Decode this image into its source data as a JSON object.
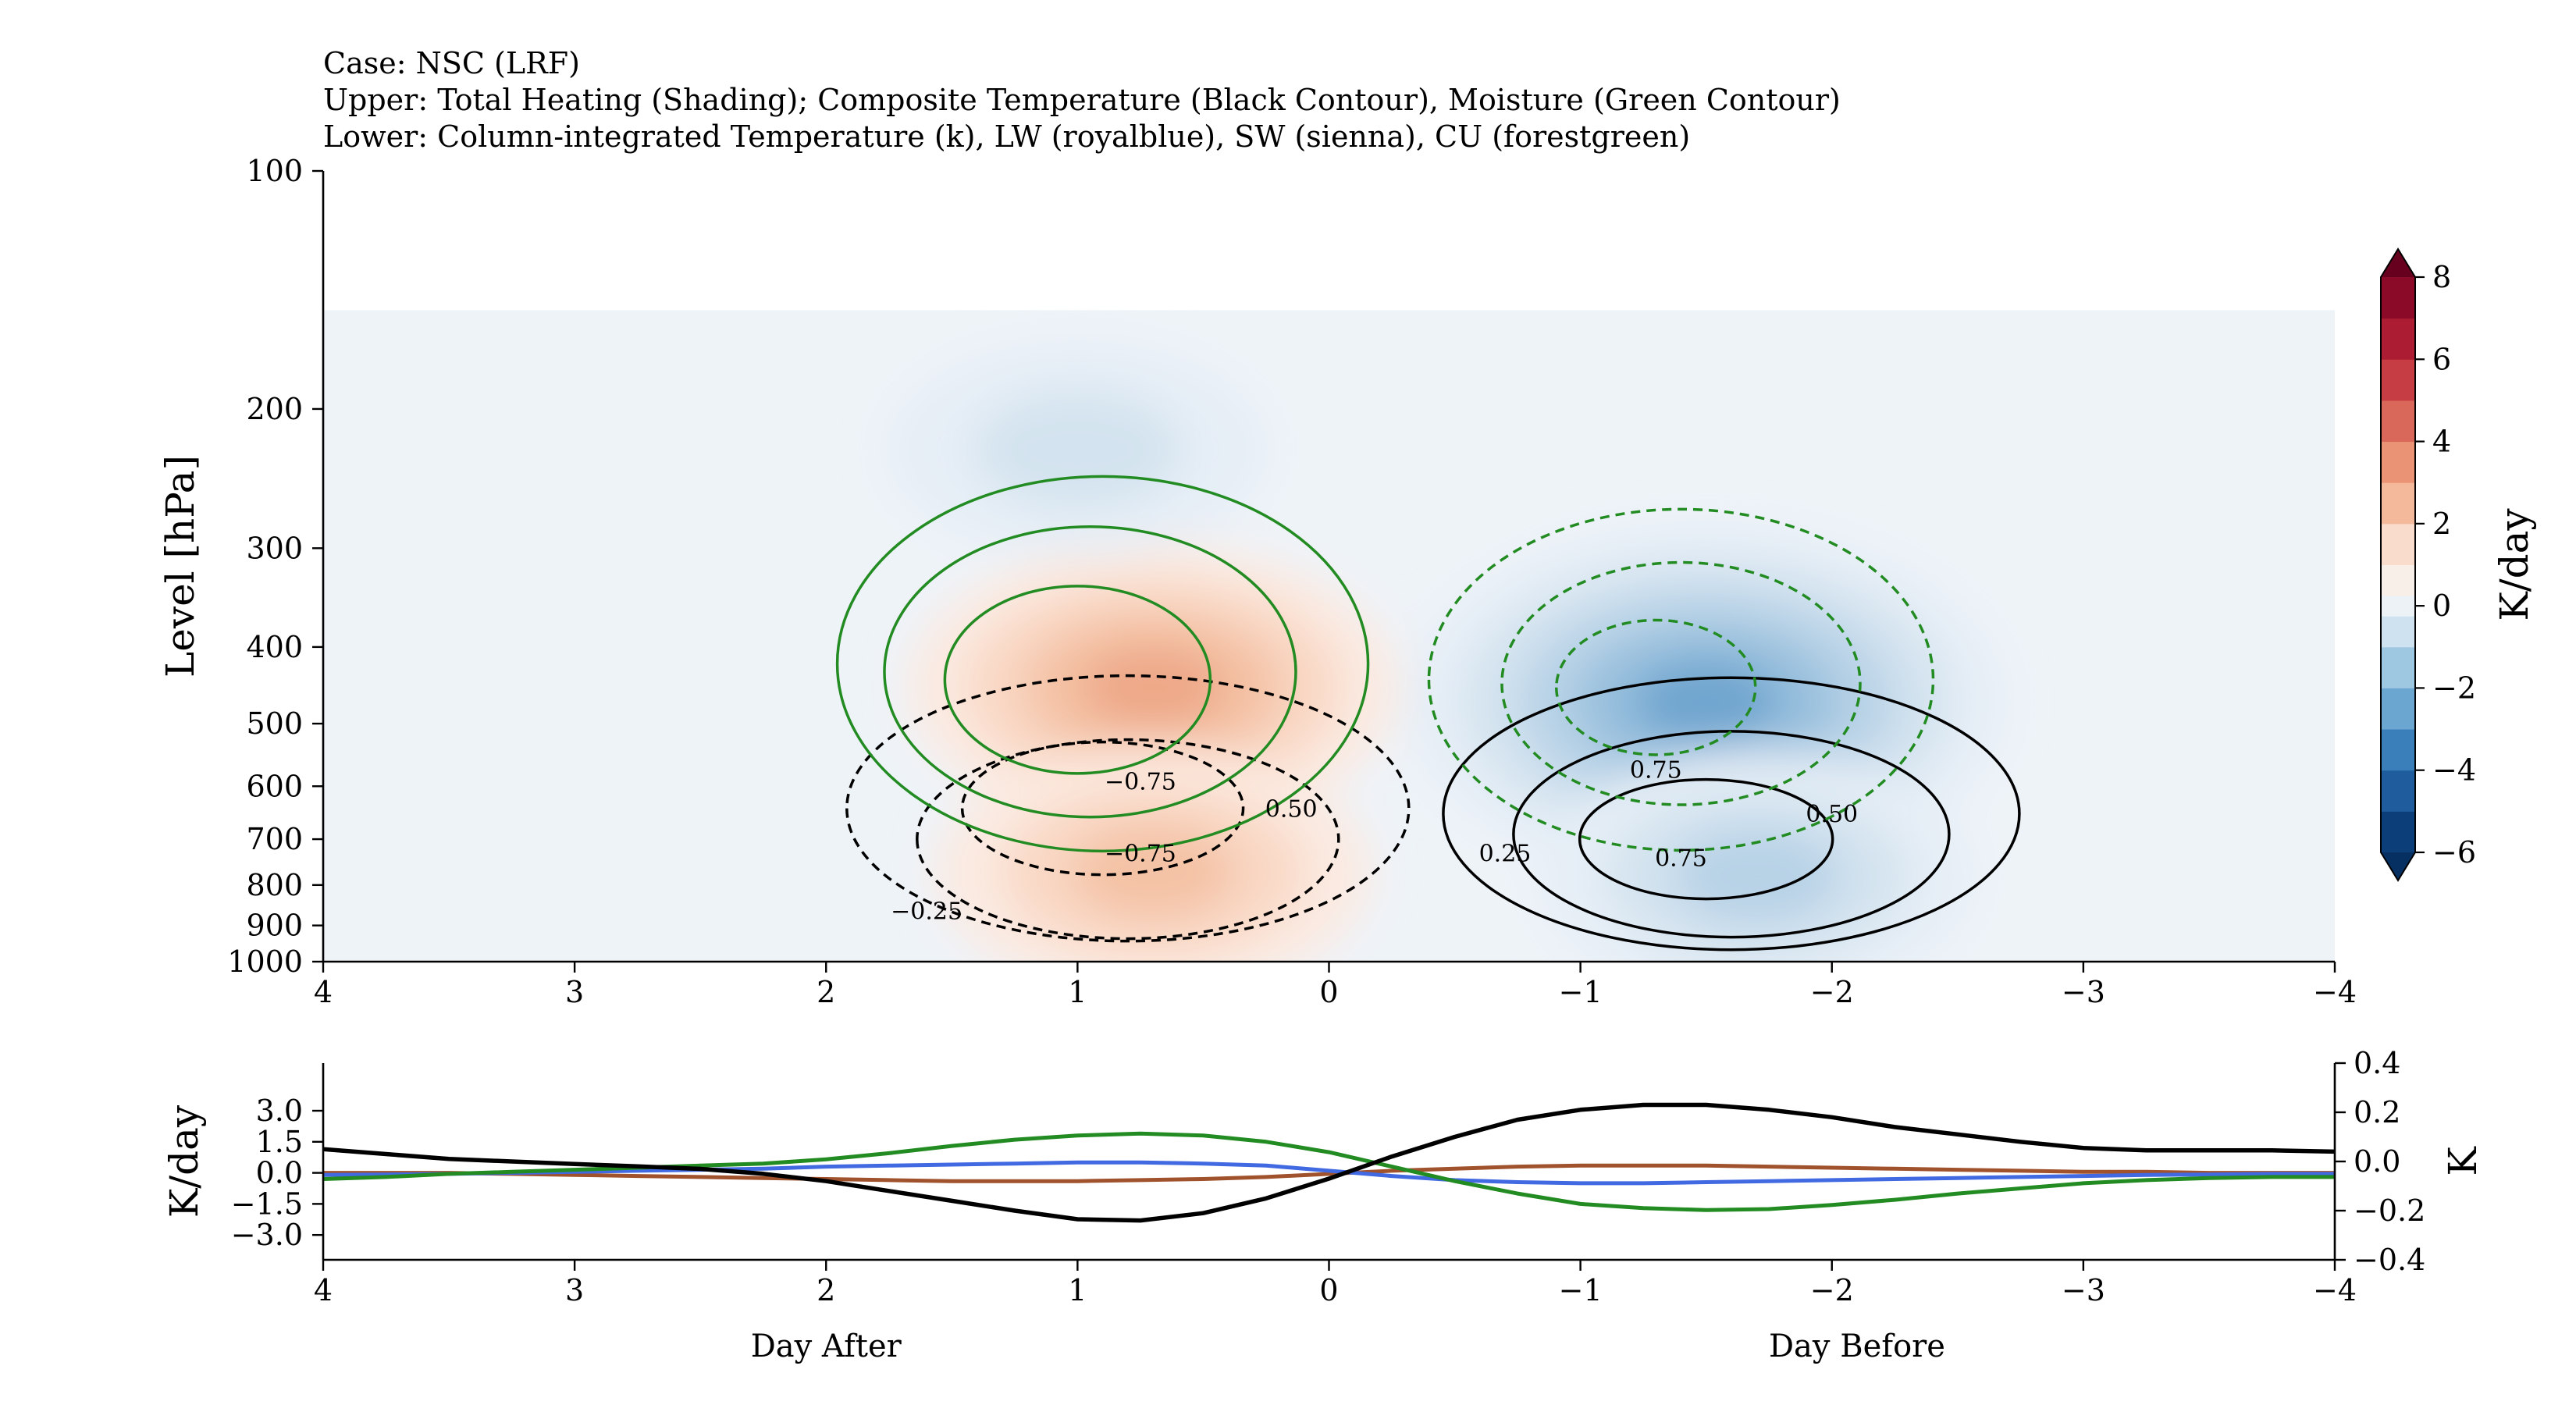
{
  "titles": {
    "line1": "Case: NSC (LRF)",
    "line2": "Upper: Total Heating (Shading); Composite Temperature (Black Contour), Moisture (Green Contour)",
    "line3": "Lower: Column-integrated Temperature (k), LW (royalblue), SW (sienna), CU (forestgreen)"
  },
  "chart_data": [
    {
      "type": "heatmap",
      "title": "",
      "xlabel": "",
      "ylabel": "Level [hPa]",
      "x_range": [
        4,
        -4
      ],
      "x_ticks": [
        "4",
        "3",
        "2",
        "1",
        "0",
        "−1",
        "−2",
        "−3",
        "−4"
      ],
      "y_scale": "log",
      "y_range": [
        1000,
        100
      ],
      "y_ticks": [
        "100",
        "200",
        "300",
        "400",
        "500",
        "600",
        "700",
        "800",
        "900",
        "1000"
      ],
      "colorbar": {
        "label": "K/day",
        "range": [
          -6,
          8
        ],
        "ticks": [
          "8",
          "6",
          "4",
          "2",
          "0",
          "−2",
          "−4",
          "−6"
        ],
        "colormap": "RdBu_r"
      },
      "shading_features": [
        {
          "sign": "positive",
          "x_center": 0.7,
          "p_center": 450,
          "peak_k_per_day": 2.5
        },
        {
          "sign": "negative",
          "x_center": -1.5,
          "p_center": 470,
          "peak_k_per_day": -3.5
        },
        {
          "sign": "negative",
          "x_center": 1.0,
          "p_center": 225,
          "peak_k_per_day": -1.5
        },
        {
          "sign": "positive",
          "x_center": 0.7,
          "p_center": 770,
          "peak_k_per_day": 2.0
        },
        {
          "sign": "negative",
          "x_center": -1.7,
          "p_center": 780,
          "peak_k_per_day": -2.0
        }
      ],
      "temperature_contours": {
        "color": "#000000",
        "labels": [
          "−0.75",
          "−0.75",
          "−0.25",
          "0.50",
          "0.25",
          "0.75",
          "0.50",
          "0.75"
        ]
      },
      "moisture_contours": {
        "color": "#228b22"
      }
    },
    {
      "type": "line",
      "xlabel_left": "Day After",
      "xlabel_right": "Day Before",
      "ylabel_left": "K/day",
      "ylabel_right": "K",
      "x_range": [
        4,
        -4
      ],
      "x_ticks": [
        "4",
        "3",
        "2",
        "1",
        "0",
        "−1",
        "−2",
        "−3",
        "−4"
      ],
      "left_ylim": [
        -4.2,
        5.3
      ],
      "left_ticks": [
        "3.0",
        "1.5",
        "0.0",
        "−1.5",
        "−3.0"
      ],
      "right_ylim": [
        -0.4,
        0.4
      ],
      "right_ticks": [
        "0.4",
        "0.2",
        "0.0",
        "−0.2",
        "−0.4"
      ],
      "x": [
        4,
        3.75,
        3.5,
        3.25,
        3,
        2.75,
        2.5,
        2.25,
        2,
        1.75,
        1.5,
        1.25,
        1,
        0.75,
        0.5,
        0.25,
        0,
        -0.25,
        -0.5,
        -0.75,
        -1,
        -1.25,
        -1.5,
        -1.75,
        -2,
        -2.25,
        -2.5,
        -2.75,
        -3,
        -3.25,
        -3.5,
        -3.75,
        -4
      ],
      "series": [
        {
          "name": "Temperature",
          "color": "#000000",
          "axis": "right",
          "values": [
            0.05,
            0.03,
            0.01,
            0.0,
            -0.01,
            -0.02,
            -0.03,
            -0.05,
            -0.08,
            -0.12,
            -0.16,
            -0.2,
            -0.235,
            -0.24,
            -0.21,
            -0.15,
            -0.07,
            0.02,
            0.1,
            0.17,
            0.21,
            0.23,
            0.23,
            0.21,
            0.18,
            0.14,
            0.11,
            0.08,
            0.055,
            0.045,
            0.045,
            0.045,
            0.04
          ]
        },
        {
          "name": "LW",
          "color": "#4169e1",
          "axis": "left",
          "values": [
            -0.1,
            -0.08,
            -0.05,
            0.0,
            0.05,
            0.1,
            0.15,
            0.2,
            0.3,
            0.35,
            0.4,
            0.45,
            0.5,
            0.5,
            0.45,
            0.35,
            0.1,
            -0.15,
            -0.35,
            -0.45,
            -0.5,
            -0.5,
            -0.45,
            -0.4,
            -0.35,
            -0.3,
            -0.25,
            -0.2,
            -0.15,
            -0.1,
            -0.08,
            -0.05,
            -0.05
          ]
        },
        {
          "name": "SW",
          "color": "#a0522d",
          "axis": "left",
          "values": [
            0.0,
            0.0,
            0.0,
            -0.05,
            -0.1,
            -0.15,
            -0.2,
            -0.25,
            -0.3,
            -0.35,
            -0.4,
            -0.4,
            -0.4,
            -0.35,
            -0.3,
            -0.2,
            -0.05,
            0.1,
            0.2,
            0.3,
            0.35,
            0.35,
            0.35,
            0.3,
            0.25,
            0.2,
            0.15,
            0.1,
            0.05,
            0.05,
            0.0,
            0.0,
            0.0
          ]
        },
        {
          "name": "CU",
          "color": "#228b22",
          "axis": "left",
          "values": [
            -0.3,
            -0.2,
            -0.05,
            0.05,
            0.15,
            0.25,
            0.35,
            0.45,
            0.65,
            0.95,
            1.3,
            1.6,
            1.8,
            1.9,
            1.8,
            1.5,
            1.0,
            0.3,
            -0.4,
            -1.0,
            -1.5,
            -1.7,
            -1.8,
            -1.75,
            -1.55,
            -1.3,
            -1.0,
            -0.75,
            -0.5,
            -0.35,
            -0.25,
            -0.2,
            -0.2
          ]
        }
      ]
    }
  ]
}
